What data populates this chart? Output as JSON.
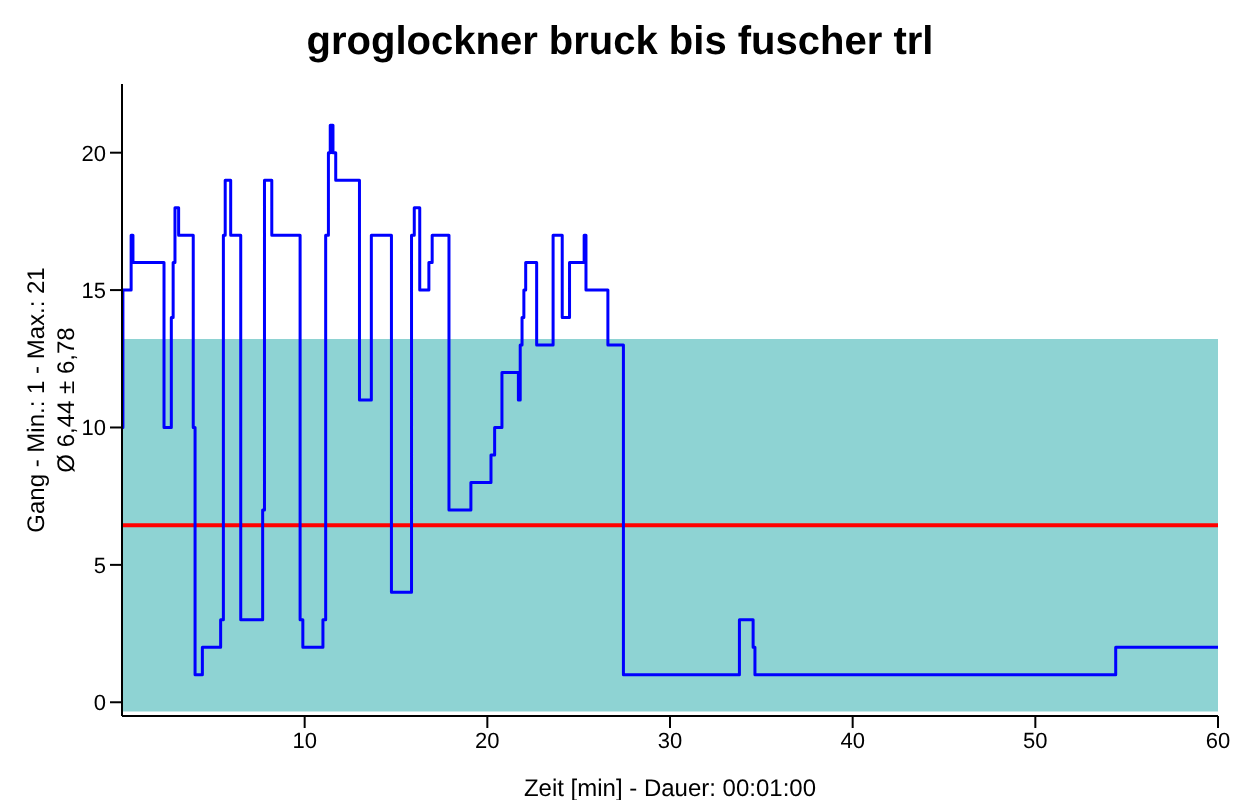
{
  "chart_data": {
    "type": "step",
    "title": "groglockner bruck bis fuscher trl",
    "xlabel": "Zeit [min] - Dauer: 00:01:00",
    "ylabel": "Gang - Min.: 1 - Max.: 21\nØ 6,44 ± 6,78",
    "x": [
      0,
      0.05,
      0.5,
      0.6,
      2.3,
      2.7,
      2.8,
      2.9,
      3.1,
      3.9,
      4.0,
      4.4,
      5.4,
      5.55,
      5.65,
      5.95,
      6.5,
      7.7,
      7.8,
      8.2,
      9.75,
      9.9,
      11.0,
      11.15,
      11.3,
      11.4,
      11.55,
      11.7,
      13.0,
      13.65,
      14.75,
      15.85,
      16.0,
      16.3,
      16.8,
      16.98,
      17.9,
      19.1,
      20.2,
      20.4,
      20.8,
      21.7,
      21.8,
      21.9,
      22.0,
      22.1,
      22.7,
      23.6,
      24.1,
      24.5,
      25.3,
      25.4,
      26.6,
      27.45,
      33.8,
      34.55,
      34.65,
      54.4,
      60
    ],
    "series": [
      {
        "color": "#0000ff",
        "values": [
          10,
          15,
          17,
          16,
          10,
          14,
          16,
          18,
          17,
          10,
          1,
          2,
          3,
          17,
          19,
          17,
          3,
          7,
          19,
          17,
          3,
          2,
          3,
          17,
          20,
          21,
          20,
          19,
          11,
          17,
          4,
          17,
          18,
          15,
          16,
          17,
          7,
          8,
          9,
          10,
          12,
          11,
          13,
          14,
          15,
          16,
          13,
          17,
          14,
          16,
          17,
          15,
          13,
          1,
          3,
          2,
          1,
          2,
          2
        ]
      }
    ],
    "xlim": [
      0,
      60
    ],
    "ylim": [
      -0.5,
      22.5
    ],
    "xticks": [
      10,
      20,
      30,
      40,
      50,
      60
    ],
    "yticks": [
      0,
      5,
      10,
      15,
      20
    ],
    "ref_lines": [
      {
        "axis": "y",
        "value": 6.44,
        "color": "#ff0000"
      }
    ],
    "bands": [
      {
        "axis": "y",
        "from": -0.34,
        "to": 13.22,
        "color": "#8ed3d3"
      }
    ],
    "marker": "none",
    "grid": false,
    "legend": false
  }
}
